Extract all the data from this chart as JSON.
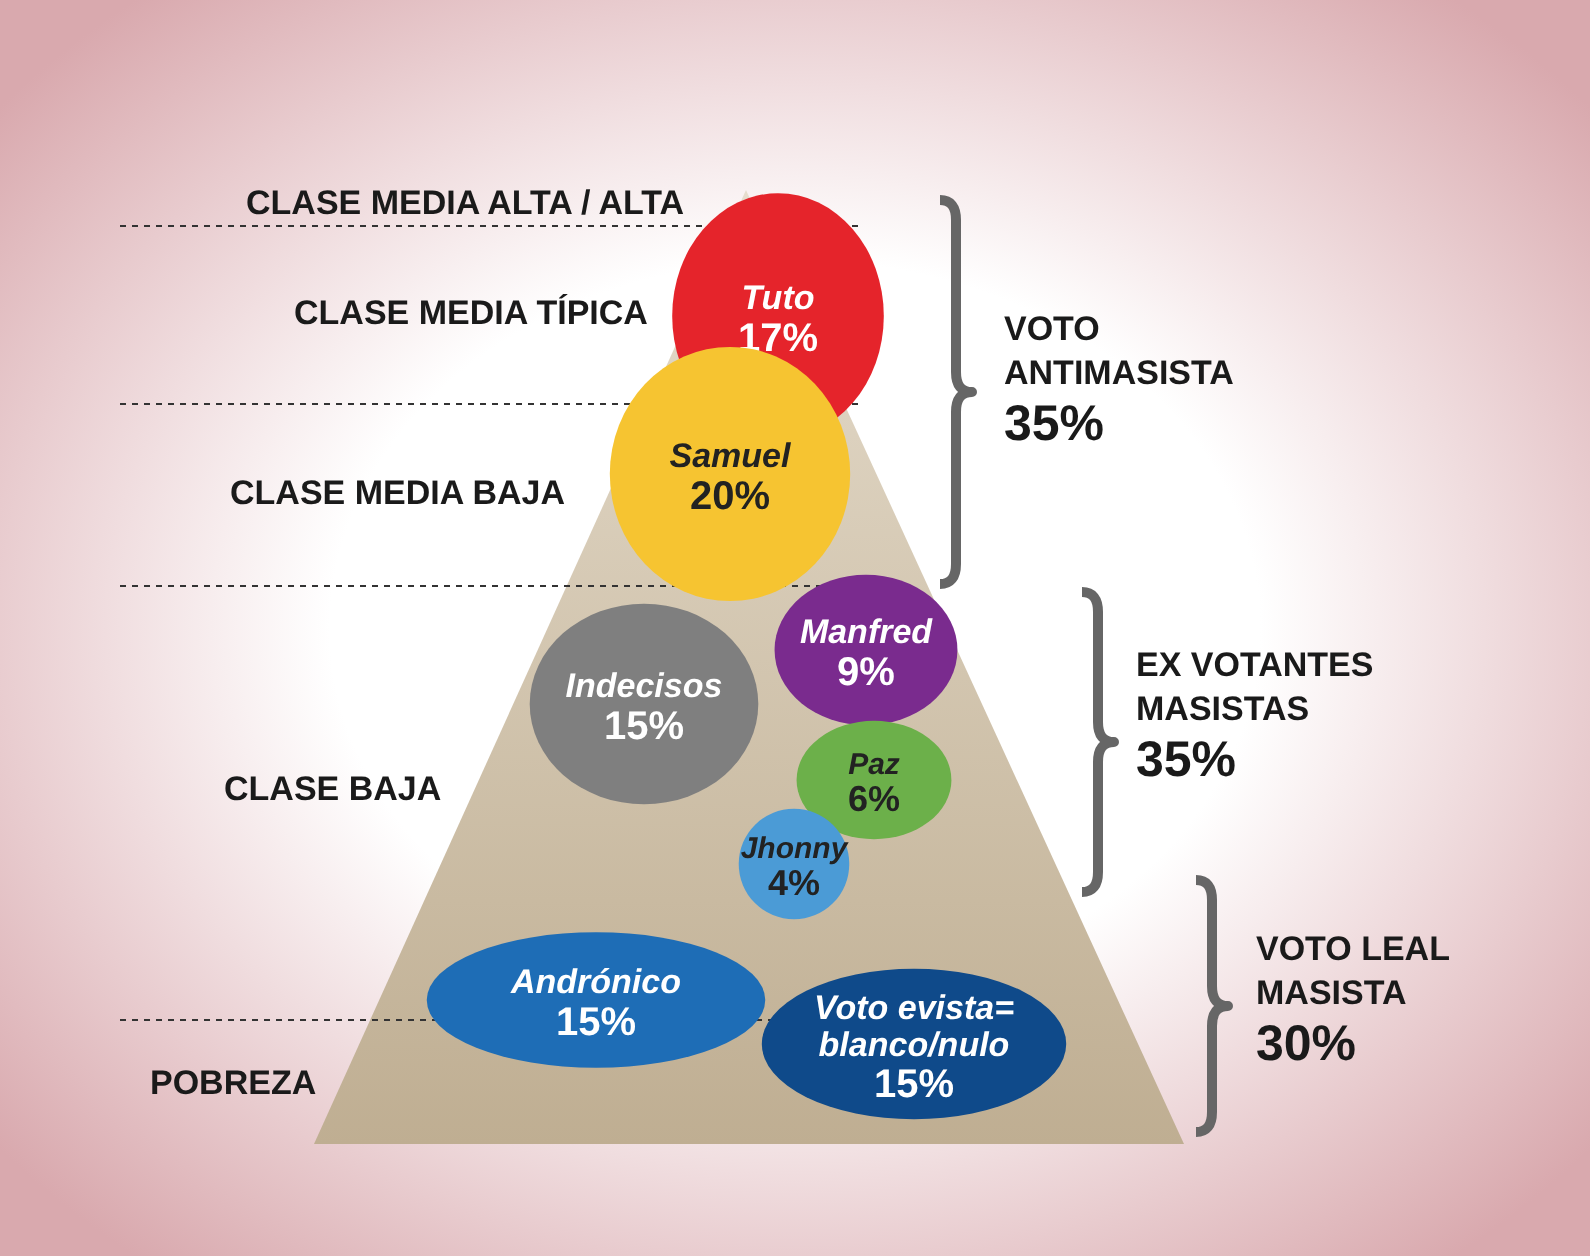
{
  "chart_data": {
    "type": "other",
    "categories": [
      "Tuto",
      "Samuel",
      "Manfred",
      "Indecisos",
      "Paz",
      "Jhonny",
      "Andrónico",
      "Voto evista=\nblanco/nulo"
    ],
    "values": [
      17,
      20,
      9,
      15,
      6,
      4,
      15,
      15
    ],
    "value_labels": [
      "17%",
      "20%",
      "9%",
      "15%",
      "6%",
      "4%",
      "15%",
      "15%"
    ],
    "colors": [
      "#e5242b",
      "#f6c431",
      "#7a2b8e",
      "#7f7f7f",
      "#6cb04a",
      "#4b9bd6",
      "#1e6db6",
      "#0f4a8a"
    ],
    "annotations": [
      "CLASE MEDIA ALTA / ALTA",
      "CLASE MEDIA TÍPICA",
      "CLASE MEDIA BAJA",
      "CLASE BAJA",
      "POBREZA",
      "VOTO\nANTIMASISTA\n35%",
      "EX VOTANTES\nMASISTAS\n35%",
      "VOTO LEAL\nMASISTA\n30%"
    ]
  }
}
